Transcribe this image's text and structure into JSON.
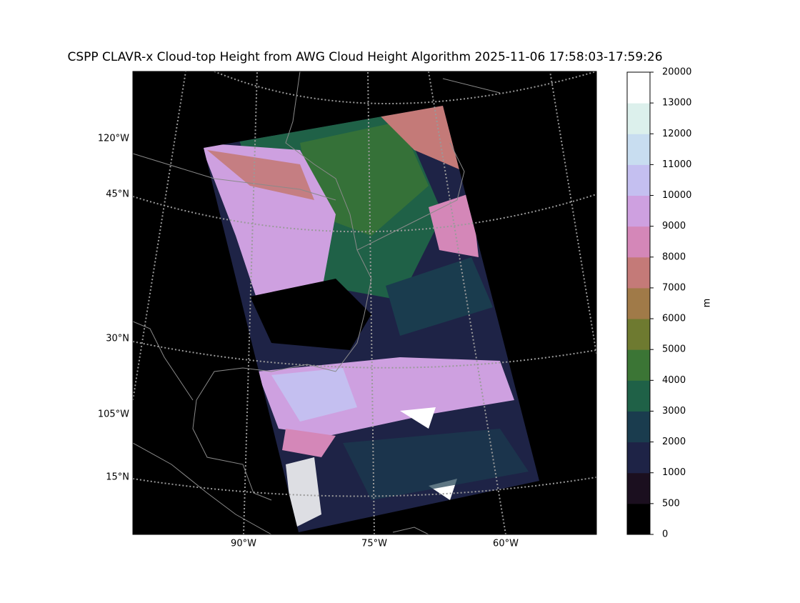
{
  "title": "CSPP CLAVR-x Cloud-top Height from AWG Cloud Height Algorithm 2025-11-06 17:58:03-17:59:26",
  "map": {
    "lon_labels": [
      "90°W",
      "75°W",
      "60°W"
    ],
    "lat_labels": [
      "120°W",
      "45°N",
      "30°N",
      "105°W",
      "15°N"
    ]
  },
  "colorbar": {
    "label": "m",
    "ticks": [
      0,
      500,
      1000,
      2000,
      3000,
      4000,
      5000,
      6000,
      7000,
      8000,
      9000,
      10000,
      11000,
      12000,
      13000,
      20000
    ],
    "colors": [
      "#000000",
      "#1b0f1f",
      "#1e2346",
      "#1a3c4e",
      "#1f6147",
      "#3b7535",
      "#6e7a30",
      "#a07a48",
      "#c47a78",
      "#d487b8",
      "#cea0e0",
      "#c4bff0",
      "#c8ddf0",
      "#dcf0ec",
      "#ffffff"
    ]
  }
}
